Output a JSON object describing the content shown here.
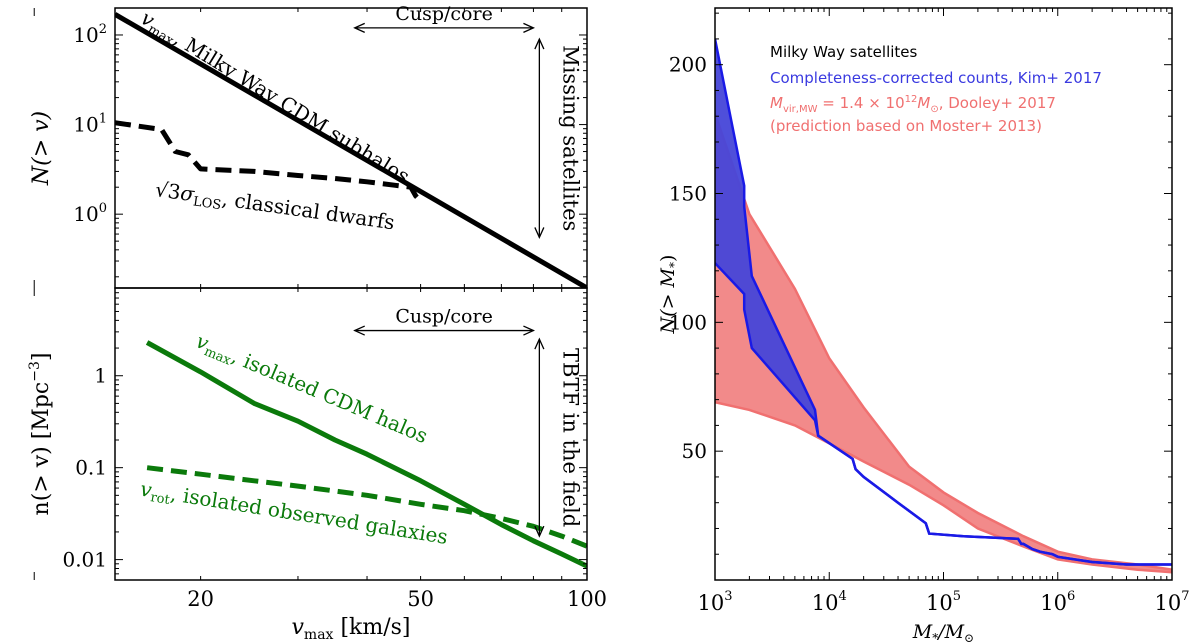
{
  "chart_data": [
    {
      "id": "top-left",
      "type": "line",
      "scale": {
        "x": "log",
        "y": "log"
      },
      "xlim": [
        14,
        100
      ],
      "ylim": [
        0.15,
        200
      ],
      "xticks": [],
      "yticks": [
        {
          "v": 100,
          "label": "10",
          "exp": "2"
        },
        {
          "v": 10,
          "label": "10",
          "exp": "1"
        },
        {
          "v": 1,
          "label": "10",
          "exp": "0"
        }
      ],
      "ylabel": {
        "main": "N(> v)"
      },
      "series": [
        {
          "key": "vmax",
          "style": "solid",
          "color": "#000000",
          "width": 5,
          "x": [
            14,
            100
          ],
          "y": [
            170,
            0.15
          ]
        },
        {
          "key": "sigma",
          "style": "dashed",
          "color": "#000000",
          "width": 5,
          "x": [
            14,
            17,
            18,
            19,
            20,
            25,
            30,
            35,
            40,
            45,
            48,
            49,
            50
          ],
          "y": [
            10.5,
            8.8,
            5.0,
            4.6,
            3.2,
            3.0,
            2.7,
            2.5,
            2.3,
            2.1,
            2.0,
            1.6,
            1.4
          ]
        }
      ],
      "labels": {
        "vmax": {
          "var": "v",
          "sub": "max",
          "text": ", Milky Way CDM subhalos",
          "x": 15.5,
          "y": 140,
          "rot": 31.5
        },
        "sigma": {
          "pre": "√3",
          "var": "σ",
          "sub": "LOS",
          "text": ", classical dwarfs",
          "x": 16.5,
          "y": 1.6,
          "rot": 8
        }
      },
      "annotations": {
        "cusp": {
          "text": "Cusp/core",
          "x1": 38,
          "x2": 80,
          "y": 120
        },
        "missing": {
          "text": "Missing satellites",
          "x": 82,
          "y1": 90,
          "y2": 0.55
        }
      }
    },
    {
      "id": "bottom-left",
      "type": "line",
      "scale": {
        "x": "log",
        "y": "log"
      },
      "xlim": [
        14,
        100
      ],
      "ylim": [
        0.006,
        9
      ],
      "xticks": [
        {
          "v": 20,
          "label": "20"
        },
        {
          "v": 50,
          "label": "50"
        },
        {
          "v": 100,
          "label": "100"
        }
      ],
      "yticks": [
        {
          "v": 1,
          "label": "1"
        },
        {
          "v": 0.1,
          "label": "0.1"
        },
        {
          "v": 0.01,
          "label": "0.01"
        }
      ],
      "xlabel": {
        "var": "v",
        "sub": "max",
        "text": " [km/s]"
      },
      "ylabel": {
        "main": "n(> v) [Mpc",
        "sup": "−3",
        "end": "]"
      },
      "series": [
        {
          "key": "vmax",
          "style": "solid",
          "color": "#0b7a0b",
          "width": 5,
          "x": [
            16,
            20,
            25,
            30,
            35,
            40,
            50,
            60,
            70,
            80,
            90,
            100
          ],
          "y": [
            2.3,
            1.1,
            0.5,
            0.32,
            0.2,
            0.14,
            0.072,
            0.04,
            0.024,
            0.016,
            0.0115,
            0.0085
          ]
        },
        {
          "key": "vrot",
          "style": "dashed",
          "color": "#0b7a0b",
          "width": 5,
          "x": [
            16,
            20,
            25,
            30,
            40,
            50,
            60,
            70,
            80,
            90,
            100
          ],
          "y": [
            0.1,
            0.085,
            0.072,
            0.063,
            0.05,
            0.04,
            0.034,
            0.028,
            0.023,
            0.018,
            0.014
          ]
        }
      ],
      "labels": {
        "vmax": {
          "var": "v",
          "sub": "max",
          "text": ", isolated CDM halos",
          "x": 19.5,
          "y": 2.1,
          "rot": 23
        },
        "vrot": {
          "var": "v",
          "sub": "rot",
          "text": ", isolated observed galaxies",
          "x": 15.5,
          "y": 0.05,
          "rot": 9
        }
      },
      "annotations": {
        "cusp": {
          "text": "Cusp/core",
          "x1": 38,
          "x2": 80,
          "y": 3.1
        },
        "tbtf": {
          "text": "TBTF in the field",
          "x": 82,
          "y1": 2.5,
          "y2": 0.018
        }
      }
    },
    {
      "id": "right",
      "type": "area",
      "scale": {
        "x": "log",
        "y": "linear"
      },
      "xlim": [
        1000,
        10000000
      ],
      "ylim": [
        0,
        222
      ],
      "xticks": [
        {
          "v": 1000,
          "label": "10",
          "exp": "3"
        },
        {
          "v": 10000,
          "label": "10",
          "exp": "4"
        },
        {
          "v": 100000,
          "label": "10",
          "exp": "5"
        },
        {
          "v": 1000000,
          "label": "10",
          "exp": "6"
        },
        {
          "v": 10000000,
          "label": "10",
          "exp": "7"
        }
      ],
      "yticks": [
        {
          "v": 50,
          "label": "50"
        },
        {
          "v": 100,
          "label": "100"
        },
        {
          "v": 150,
          "label": "150"
        },
        {
          "v": 200,
          "label": "200"
        }
      ],
      "xlabel": {
        "var": "M",
        "sub": "*",
        "text": "/M",
        "sub2": "⊙"
      },
      "ylabel": {
        "main": "N(> M",
        "sub": "*",
        "end": ")"
      },
      "series": [
        {
          "key": "dooley",
          "color": "#f07070",
          "fill": "#f28a8a",
          "x": [
            1000,
            2000,
            5000,
            10000,
            20000,
            50000,
            100000,
            200000,
            500000,
            1000000,
            2000000,
            5000000,
            10000000
          ],
          "upper": [
            181,
            142,
            113,
            86,
            67,
            44,
            34,
            26,
            17,
            11,
            8,
            6,
            4
          ],
          "lower": [
            69,
            66,
            60,
            53,
            46,
            37,
            29,
            20,
            13,
            8,
            6,
            4,
            3
          ]
        },
        {
          "key": "kim",
          "color": "#1a1ae6",
          "fill": "#4646d8",
          "x": [
            1000,
            1800,
            1800,
            2100,
            2100,
            7500,
            8000,
            16000,
            17000,
            20000,
            40000,
            70000,
            75000,
            150000,
            450000,
            480000,
            500000,
            600000,
            700000,
            900000,
            1000000,
            2000000,
            4000000,
            10000000
          ],
          "upper": [
            210,
            153,
            145,
            118,
            118,
            66,
            56,
            47,
            43,
            40,
            30,
            22,
            18,
            17,
            16,
            14,
            14,
            12,
            11,
            10,
            9,
            7,
            6,
            6
          ],
          "lower": [
            123,
            111,
            105,
            90,
            90,
            62,
            56,
            47,
            43,
            40,
            30,
            22,
            18,
            17,
            16,
            14,
            14,
            12,
            11,
            10,
            9,
            7,
            6,
            6
          ]
        }
      ],
      "legend": {
        "title": "Milky Way satellites",
        "kim": "Completeness-corrected counts, Kim+ 2017",
        "dooley_pre": "M",
        "dooley_sub": "vir,MW",
        "dooley_eq": " = 1.4 × 10",
        "dooley_exp": "12",
        "dooley_m": "M",
        "dooley_sun": "⊙",
        "dooley_post": ", Dooley+ 2017",
        "dooley_note": "(prediction based on Moster+ 2013)",
        "colors": {
          "title": "#000000",
          "kim": "#3a3ae0",
          "dooley": "#f07070"
        }
      }
    }
  ]
}
